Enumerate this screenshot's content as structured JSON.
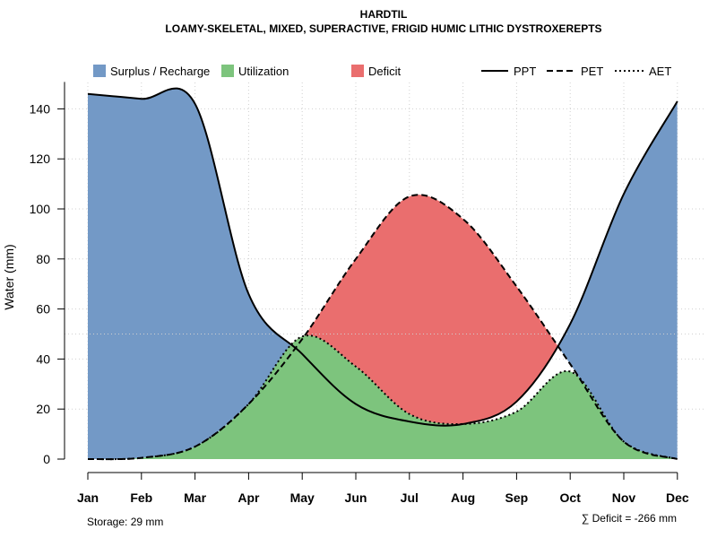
{
  "chart_data": {
    "type": "area",
    "title": "HARDTIL",
    "subtitle": "LOAMY-SKELETAL, MIXED, SUPERACTIVE, FRIGID HUMIC LITHIC DYSTROXEREPTS",
    "ylabel": "Water (mm)",
    "xlabel": "",
    "categories": [
      "Jan",
      "Feb",
      "Mar",
      "Apr",
      "May",
      "Jun",
      "Jul",
      "Aug",
      "Sep",
      "Oct",
      "Nov",
      "Dec"
    ],
    "ylim": [
      0,
      150
    ],
    "yticks": [
      0,
      20,
      40,
      60,
      80,
      100,
      120,
      140
    ],
    "grid": true,
    "series": [
      {
        "name": "PPT",
        "style": "solid",
        "values": [
          146,
          144,
          142,
          66,
          42,
          22,
          15,
          14,
          23,
          54,
          106,
          143
        ]
      },
      {
        "name": "PET",
        "style": "dashed",
        "values": [
          0,
          0.5,
          5,
          22,
          48,
          80,
          105,
          96,
          69,
          38,
          7,
          0
        ]
      },
      {
        "name": "AET",
        "style": "dotted",
        "values": [
          0,
          0.5,
          5,
          22,
          49,
          37,
          18,
          14,
          19,
          35,
          7,
          0
        ]
      }
    ],
    "legend": {
      "placement": "top",
      "areas": [
        {
          "label": "Surplus / Recharge",
          "color": "#7399c6"
        },
        {
          "label": "Utilization",
          "color": "#7dc47d"
        },
        {
          "label": "Deficit",
          "color": "#ea6e6e"
        }
      ],
      "lines": [
        {
          "label": "PPT",
          "style": "solid"
        },
        {
          "label": "PET",
          "style": "dashed"
        },
        {
          "label": "AET",
          "style": "dotted"
        }
      ]
    },
    "annotations": {
      "storage": "Storage: 29 mm",
      "deficit": "∑ Deficit = -266 mm"
    }
  }
}
